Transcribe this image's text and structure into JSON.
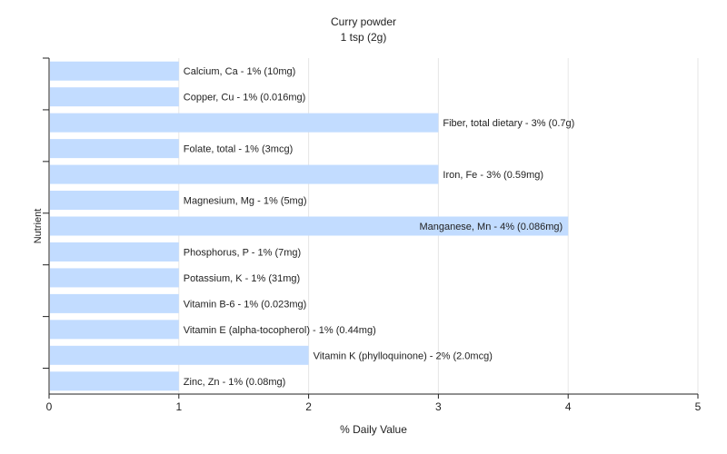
{
  "chart_data": {
    "type": "bar",
    "orientation": "horizontal",
    "title": "Curry powder",
    "subtitle": "1 tsp (2g)",
    "xlabel": "% Daily Value",
    "ylabel": "Nutrient",
    "xlim": [
      0,
      5
    ],
    "xticks": [
      "0",
      "1",
      "2",
      "3",
      "4",
      "5"
    ],
    "grid": true,
    "bar_color": "#c2dcff",
    "categories": [
      "Calcium, Ca",
      "Copper, Cu",
      "Fiber, total dietary",
      "Folate, total",
      "Iron, Fe",
      "Magnesium, Mg",
      "Manganese, Mn",
      "Phosphorus, P",
      "Potassium, K",
      "Vitamin B-6",
      "Vitamin E (alpha-tocopherol)",
      "Vitamin K (phylloquinone)",
      "Zinc, Zn"
    ],
    "values": [
      1,
      1,
      3,
      1,
      3,
      1,
      4,
      1,
      1,
      1,
      1,
      2,
      1
    ],
    "labels": [
      "Calcium, Ca - 1% (10mg)",
      "Copper, Cu - 1% (0.016mg)",
      "Fiber, total dietary - 3% (0.7g)",
      "Folate, total - 1% (3mcg)",
      "Iron, Fe - 3% (0.59mg)",
      "Magnesium, Mg - 1% (5mg)",
      "Manganese, Mn - 4% (0.086mg)",
      "Phosphorus, P - 1% (7mg)",
      "Potassium, K - 1% (31mg)",
      "Vitamin B-6 - 1% (0.023mg)",
      "Vitamin E (alpha-tocopherol) - 1% (0.44mg)",
      "Vitamin K (phylloquinone) - 2% (2.0mcg)",
      "Zinc, Zn - 1% (0.08mg)"
    ]
  }
}
